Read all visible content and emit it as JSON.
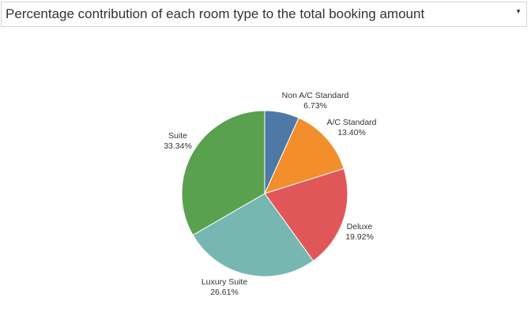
{
  "header": {
    "title": "Percentage contribution of each room type to the total booking amount"
  },
  "chart_data": {
    "type": "pie",
    "title": "Percentage contribution of each room type to the total booking amount",
    "slices": [
      {
        "name": "Non A/C Standard",
        "value": 6.73,
        "label": "6.73%",
        "color": "#4e79a7"
      },
      {
        "name": "A/C Standard",
        "value": 13.4,
        "label": "13.40%",
        "color": "#f28e2b"
      },
      {
        "name": "Deluxe",
        "value": 19.92,
        "label": "19.92%",
        "color": "#e15759"
      },
      {
        "name": "Luxury Suite",
        "value": 26.61,
        "label": "26.61%",
        "color": "#76b7b2"
      },
      {
        "name": "Suite",
        "value": 33.34,
        "label": "33.34%",
        "color": "#59a14f"
      }
    ]
  }
}
